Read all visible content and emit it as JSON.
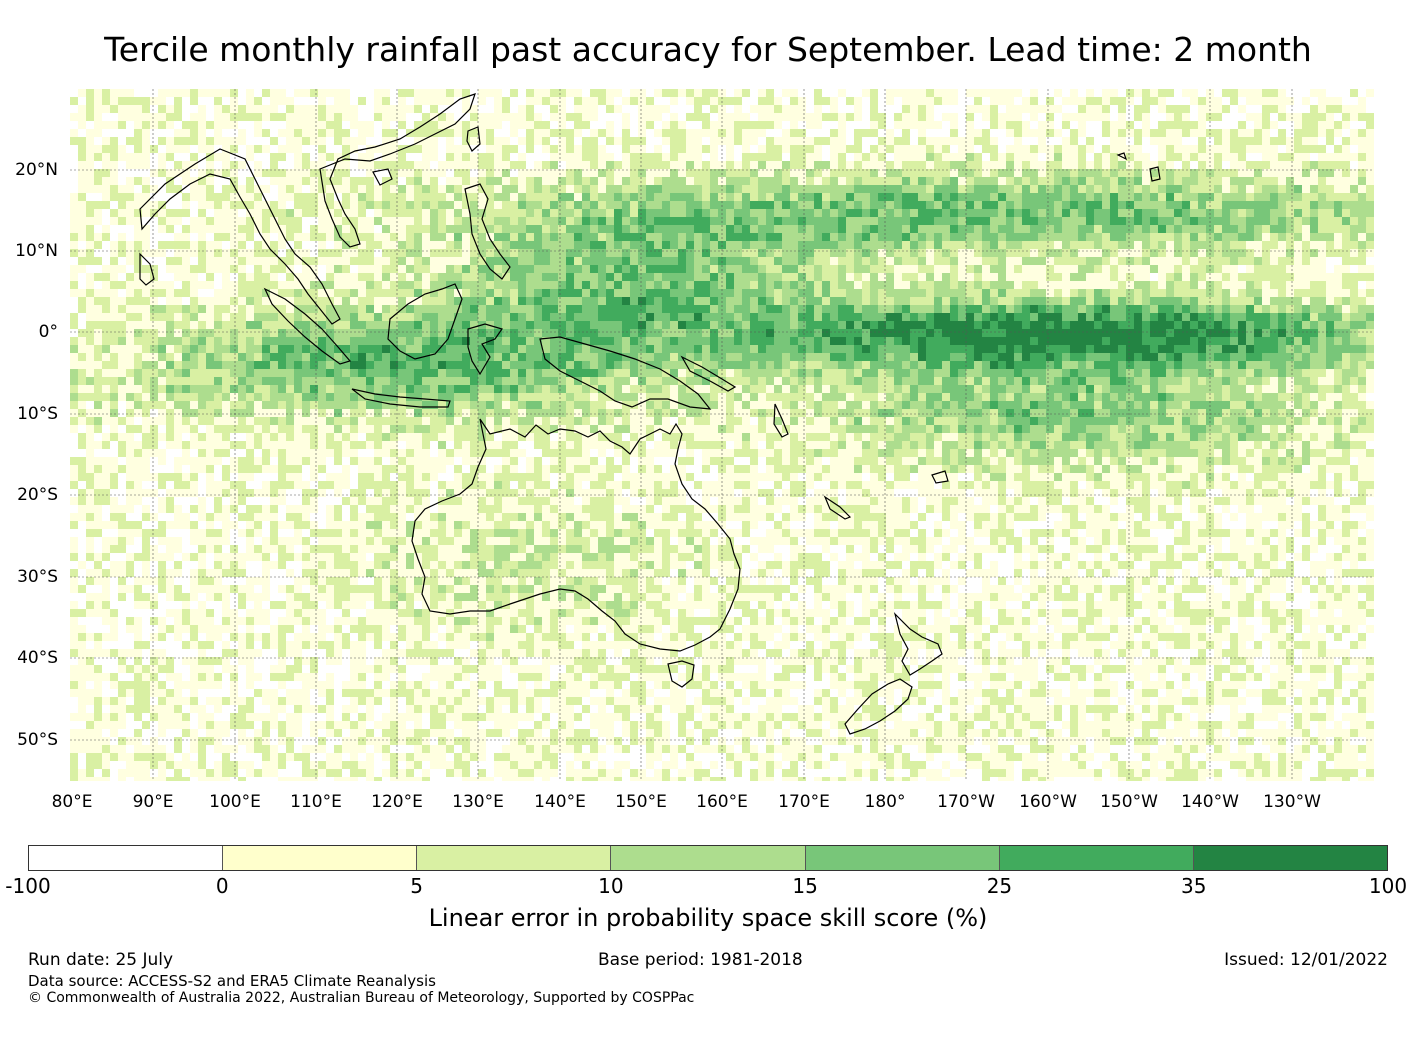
{
  "title": "Tercile monthly rainfall past accuracy for September. Lead time: 2 month",
  "map": {
    "lat_labels": [
      "20°N",
      "10°N",
      "0°",
      "10°S",
      "20°S",
      "30°S",
      "40°S",
      "50°S"
    ],
    "lon_labels": [
      "80°E",
      "90°E",
      "100°E",
      "110°E",
      "120°E",
      "130°E",
      "140°E",
      "150°E",
      "160°E",
      "170°E",
      "180°",
      "170°W",
      "160°W",
      "150°W",
      "140°W",
      "130°W"
    ]
  },
  "colorbar": {
    "title": "Linear error in probability space skill score (%)",
    "ticks": [
      "-100",
      "0",
      "5",
      "10",
      "15",
      "25",
      "35",
      "100"
    ],
    "colors": [
      "#ffffff",
      "#ffffcc",
      "#d9f0a3",
      "#addd8e",
      "#78c679",
      "#41ab5d",
      "#238443"
    ]
  },
  "footer": {
    "run_date": "Run date: 25 July",
    "base_period": "Base period: 1981-2018",
    "issued": "Issued: 12/01/2022",
    "data_source": "Data source: ACCESS-S2 and ERA5 Climate Reanalysis",
    "copyright": "© Commonwealth of Australia 2022, Australian Bureau of Meteorology, Supported by COSPPac"
  }
}
